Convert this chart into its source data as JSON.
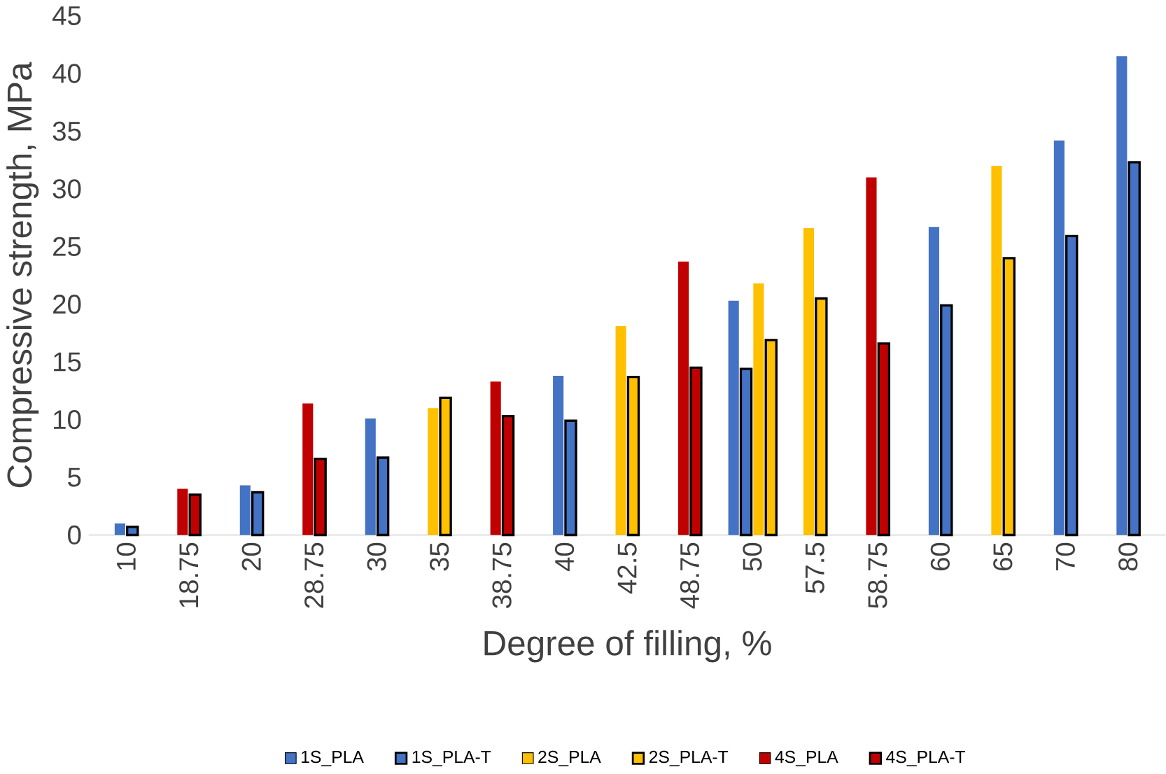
{
  "chart_data": {
    "type": "bar",
    "xlabel": "Degree of filling, %",
    "ylabel": "Compressive strength, MPa",
    "categories": [
      "10",
      "18.75",
      "20",
      "28.75",
      "30",
      "35",
      "38.75",
      "40",
      "42.5",
      "48.75",
      "50",
      "57.5",
      "58.75",
      "60",
      "65",
      "70",
      "80"
    ],
    "series": [
      {
        "name": "1S_PLA",
        "color": "#4472c4",
        "values": [
          1.0,
          null,
          4.3,
          null,
          10.1,
          null,
          null,
          13.8,
          null,
          null,
          20.3,
          null,
          null,
          26.7,
          null,
          34.2,
          41.5
        ]
      },
      {
        "name": "1S_PLA-T",
        "color": "#4472c4",
        "line_style": "solid",
        "values": [
          0.7,
          null,
          3.7,
          null,
          6.7,
          null,
          null,
          9.9,
          null,
          null,
          14.4,
          null,
          null,
          19.9,
          null,
          25.9,
          32.3
        ]
      },
      {
        "name": "2S_PLA",
        "color": "#ffc000",
        "values": [
          null,
          null,
          null,
          null,
          null,
          11.0,
          null,
          null,
          18.1,
          null,
          21.8,
          26.6,
          null,
          null,
          32.0,
          null,
          null
        ]
      },
      {
        "name": "2S_PLA-T",
        "color": "#ffc000",
        "line_style": "solid",
        "values": [
          null,
          null,
          null,
          null,
          null,
          11.9,
          null,
          null,
          13.7,
          null,
          16.9,
          20.5,
          null,
          null,
          24.0,
          null,
          null
        ]
      },
      {
        "name": "4S_PLA",
        "color": "#c00000",
        "values": [
          null,
          4.0,
          null,
          11.4,
          null,
          null,
          13.3,
          null,
          null,
          23.7,
          null,
          null,
          31.0,
          null,
          null,
          null,
          null
        ]
      },
      {
        "name": "4S_PLA-T",
        "color": "#c00000",
        "line_style": "solid",
        "values": [
          null,
          3.5,
          null,
          6.6,
          null,
          null,
          10.3,
          null,
          null,
          14.5,
          null,
          null,
          16.6,
          null,
          null,
          null,
          null
        ]
      }
    ],
    "ylim": [
      0,
      45
    ],
    "yticks": [
      0,
      5,
      10,
      15,
      20,
      25,
      30,
      35,
      40,
      45
    ],
    "grid": false,
    "legend": "bottom"
  }
}
